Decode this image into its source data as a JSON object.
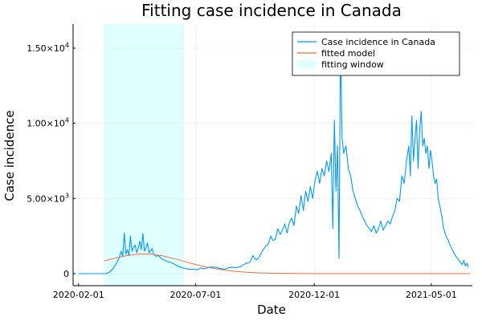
{
  "chart_data": {
    "type": "line",
    "title": "Fitting case incidence in Canada",
    "xlabel": "Date",
    "ylabel": "Case incidence",
    "x_range": [
      "2020-01-25",
      "2021-06-23"
    ],
    "y_range": [
      -800,
      16600
    ],
    "x_ticks": [
      {
        "date": "2020-02-01",
        "label": "2020-02-01"
      },
      {
        "date": "2020-07-01",
        "label": "2020-07-01"
      },
      {
        "date": "2020-12-01",
        "label": "2020-12-01"
      },
      {
        "date": "2021-05-01",
        "label": "2021-05-01"
      }
    ],
    "y_ticks": [
      {
        "value": 0,
        "mantissa": "0",
        "exp": ""
      },
      {
        "value": 5000,
        "mantissa": "5.00×10",
        "exp": "3"
      },
      {
        "value": 10000,
        "mantissa": "1.00×10",
        "exp": "4"
      },
      {
        "value": 15000,
        "mantissa": "1.50×10",
        "exp": "4"
      }
    ],
    "grid": true,
    "legend_position": "top-right",
    "fitting_window": {
      "name": "fitting window",
      "start": "2020-03-05",
      "end": "2020-06-16",
      "color": "#e0ffff"
    },
    "series": [
      {
        "name": "Case incidence in Canada",
        "color": "#009af9",
        "points": [
          [
            "2020-02-01",
            0
          ],
          [
            "2020-02-15",
            0
          ],
          [
            "2020-03-01",
            0
          ],
          [
            "2020-03-08",
            10
          ],
          [
            "2020-03-12",
            100
          ],
          [
            "2020-03-16",
            300
          ],
          [
            "2020-03-20",
            600
          ],
          [
            "2020-03-24",
            1000
          ],
          [
            "2020-03-27",
            1500
          ],
          [
            "2020-03-29",
            1150
          ],
          [
            "2020-03-31",
            2700
          ],
          [
            "2020-04-02",
            1300
          ],
          [
            "2020-04-04",
            1600
          ],
          [
            "2020-04-06",
            1200
          ],
          [
            "2020-04-08",
            2500
          ],
          [
            "2020-04-10",
            1500
          ],
          [
            "2020-04-12",
            1750
          ],
          [
            "2020-04-14",
            1900
          ],
          [
            "2020-04-16",
            1400
          ],
          [
            "2020-04-18",
            1700
          ],
          [
            "2020-04-20",
            2150
          ],
          [
            "2020-04-22",
            1600
          ],
          [
            "2020-04-24",
            2650
          ],
          [
            "2020-04-26",
            1500
          ],
          [
            "2020-04-28",
            1700
          ],
          [
            "2020-04-30",
            2050
          ],
          [
            "2020-05-02",
            1400
          ],
          [
            "2020-05-04",
            1550
          ],
          [
            "2020-05-06",
            1650
          ],
          [
            "2020-05-08",
            1300
          ],
          [
            "2020-05-11",
            1150
          ],
          [
            "2020-05-14",
            1200
          ],
          [
            "2020-05-18",
            1000
          ],
          [
            "2020-05-22",
            900
          ],
          [
            "2020-05-26",
            800
          ],
          [
            "2020-05-30",
            750
          ],
          [
            "2020-06-03",
            650
          ],
          [
            "2020-06-08",
            500
          ],
          [
            "2020-06-13",
            400
          ],
          [
            "2020-06-18",
            350
          ],
          [
            "2020-06-23",
            280
          ],
          [
            "2020-06-28",
            300
          ],
          [
            "2020-07-03",
            250
          ],
          [
            "2020-07-08",
            380
          ],
          [
            "2020-07-13",
            320
          ],
          [
            "2020-07-18",
            420
          ],
          [
            "2020-07-23",
            450
          ],
          [
            "2020-07-28",
            400
          ],
          [
            "2020-08-02",
            350
          ],
          [
            "2020-08-07",
            300
          ],
          [
            "2020-08-12",
            380
          ],
          [
            "2020-08-17",
            420
          ],
          [
            "2020-08-22",
            400
          ],
          [
            "2020-08-27",
            450
          ],
          [
            "2020-09-01",
            600
          ],
          [
            "2020-09-05",
            700
          ],
          [
            "2020-09-09",
            750
          ],
          [
            "2020-09-13",
            1200
          ],
          [
            "2020-09-17",
            900
          ],
          [
            "2020-09-21",
            1100
          ],
          [
            "2020-09-25",
            1500
          ],
          [
            "2020-09-29",
            1800
          ],
          [
            "2020-10-03",
            2000
          ],
          [
            "2020-10-06",
            2500
          ],
          [
            "2020-10-09",
            2200
          ],
          [
            "2020-10-12",
            2300
          ],
          [
            "2020-10-15",
            3000
          ],
          [
            "2020-10-18",
            2600
          ],
          [
            "2020-10-21",
            2900
          ],
          [
            "2020-10-24",
            3300
          ],
          [
            "2020-10-27",
            2700
          ],
          [
            "2020-10-30",
            3400
          ],
          [
            "2020-11-02",
            3700
          ],
          [
            "2020-11-05",
            3200
          ],
          [
            "2020-11-08",
            4500
          ],
          [
            "2020-11-11",
            4000
          ],
          [
            "2020-11-14",
            5200
          ],
          [
            "2020-11-17",
            4200
          ],
          [
            "2020-11-20",
            5500
          ],
          [
            "2020-11-23",
            4800
          ],
          [
            "2020-11-26",
            5800
          ],
          [
            "2020-11-29",
            5000
          ],
          [
            "2020-12-02",
            6200
          ],
          [
            "2020-12-05",
            6800
          ],
          [
            "2020-12-08",
            6000
          ],
          [
            "2020-12-11",
            7000
          ],
          [
            "2020-12-14",
            6500
          ],
          [
            "2020-12-17",
            7500
          ],
          [
            "2020-12-20",
            6800
          ],
          [
            "2020-12-23",
            8000
          ],
          [
            "2020-12-25",
            3000
          ],
          [
            "2020-12-27",
            10200
          ],
          [
            "2020-12-29",
            5500
          ],
          [
            "2020-12-31",
            8500
          ],
          [
            "2021-01-02",
            1000
          ],
          [
            "2021-01-04",
            15500
          ],
          [
            "2021-01-06",
            9000
          ],
          [
            "2021-01-08",
            8000
          ],
          [
            "2021-01-11",
            8500
          ],
          [
            "2021-01-14",
            7000
          ],
          [
            "2021-01-17",
            6500
          ],
          [
            "2021-01-20",
            5500
          ],
          [
            "2021-01-23",
            5000
          ],
          [
            "2021-01-26",
            4500
          ],
          [
            "2021-01-29",
            4200
          ],
          [
            "2021-02-01",
            3800
          ],
          [
            "2021-02-04",
            3500
          ],
          [
            "2021-02-07",
            3200
          ],
          [
            "2021-02-10",
            3000
          ],
          [
            "2021-02-13",
            2800
          ],
          [
            "2021-02-16",
            3200
          ],
          [
            "2021-02-19",
            2700
          ],
          [
            "2021-02-22",
            3000
          ],
          [
            "2021-02-25",
            3500
          ],
          [
            "2021-02-28",
            2900
          ],
          [
            "2021-03-03",
            3200
          ],
          [
            "2021-03-06",
            3500
          ],
          [
            "2021-03-09",
            3300
          ],
          [
            "2021-03-12",
            3800
          ],
          [
            "2021-03-15",
            4200
          ],
          [
            "2021-03-18",
            5000
          ],
          [
            "2021-03-21",
            4800
          ],
          [
            "2021-03-24",
            6500
          ],
          [
            "2021-03-27",
            6000
          ],
          [
            "2021-03-30",
            7500
          ],
          [
            "2021-04-02",
            8500
          ],
          [
            "2021-04-04",
            6500
          ],
          [
            "2021-04-06",
            10500
          ],
          [
            "2021-04-08",
            7500
          ],
          [
            "2021-04-10",
            9000
          ],
          [
            "2021-04-12",
            10200
          ],
          [
            "2021-04-14",
            7000
          ],
          [
            "2021-04-16",
            9500
          ],
          [
            "2021-04-18",
            10800
          ],
          [
            "2021-04-20",
            8500
          ],
          [
            "2021-04-22",
            9000
          ],
          [
            "2021-04-24",
            8000
          ],
          [
            "2021-04-26",
            8500
          ],
          [
            "2021-04-28",
            7000
          ],
          [
            "2021-04-30",
            8200
          ],
          [
            "2021-05-02",
            7500
          ],
          [
            "2021-05-04",
            6500
          ],
          [
            "2021-05-06",
            6000
          ],
          [
            "2021-05-08",
            6300
          ],
          [
            "2021-05-10",
            5000
          ],
          [
            "2021-05-12",
            4500
          ],
          [
            "2021-05-14",
            4000
          ],
          [
            "2021-05-17",
            3000
          ],
          [
            "2021-05-20",
            2500
          ],
          [
            "2021-05-23",
            2200
          ],
          [
            "2021-05-26",
            1800
          ],
          [
            "2021-05-29",
            1500
          ],
          [
            "2021-06-01",
            1200
          ],
          [
            "2021-06-04",
            1000
          ],
          [
            "2021-06-07",
            800
          ],
          [
            "2021-06-10",
            600
          ],
          [
            "2021-06-12",
            900
          ],
          [
            "2021-06-14",
            500
          ],
          [
            "2021-06-16",
            700
          ],
          [
            "2021-06-18",
            400
          ]
        ]
      },
      {
        "name": "fitted model",
        "color": "#e26f46",
        "points": [
          [
            "2020-03-05",
            850
          ],
          [
            "2020-03-20",
            1050
          ],
          [
            "2020-04-05",
            1220
          ],
          [
            "2020-04-20",
            1310
          ],
          [
            "2020-05-05",
            1300
          ],
          [
            "2020-05-20",
            1180
          ],
          [
            "2020-06-05",
            980
          ],
          [
            "2020-06-20",
            760
          ],
          [
            "2020-07-05",
            560
          ],
          [
            "2020-07-20",
            390
          ],
          [
            "2020-08-05",
            250
          ],
          [
            "2020-08-20",
            160
          ],
          [
            "2020-09-05",
            95
          ],
          [
            "2020-09-20",
            55
          ],
          [
            "2020-10-05",
            30
          ],
          [
            "2020-11-01",
            10
          ],
          [
            "2020-12-01",
            3
          ],
          [
            "2021-01-01",
            1
          ],
          [
            "2021-06-20",
            0
          ]
        ]
      }
    ]
  }
}
